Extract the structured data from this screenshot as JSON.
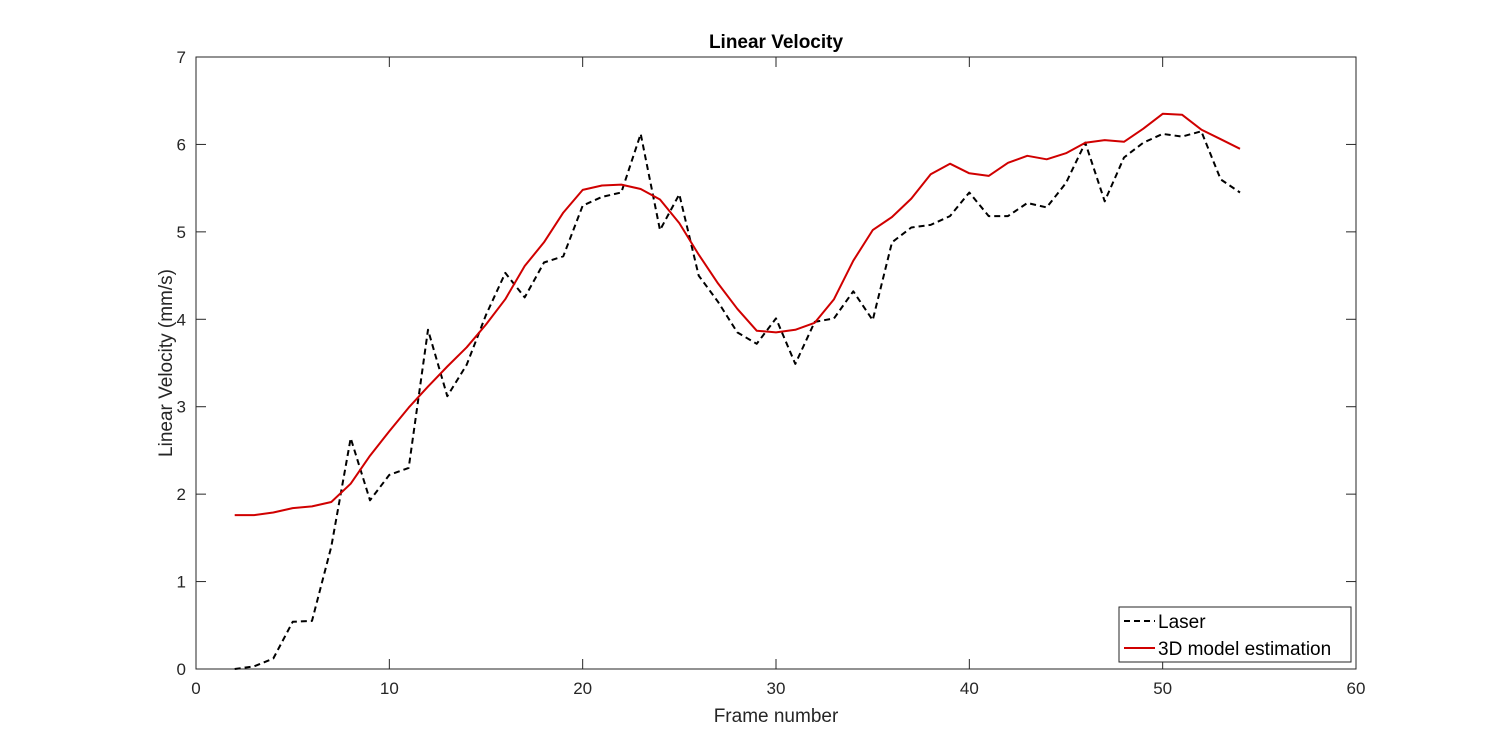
{
  "chart_data": {
    "type": "line",
    "title": "Linear Velocity",
    "xlabel": "Frame number",
    "ylabel": "Linear Velocity (mm/s)",
    "xlim": [
      0,
      60
    ],
    "ylim": [
      0,
      7
    ],
    "xticks": [
      0,
      10,
      20,
      30,
      40,
      50,
      60
    ],
    "yticks": [
      0,
      1,
      2,
      3,
      4,
      5,
      6,
      7
    ],
    "grid": false,
    "legend_position": "bottom-right",
    "series": [
      {
        "name": "Laser",
        "color": "#000000",
        "style": "dashed",
        "x": [
          2,
          3,
          4,
          5,
          6,
          7,
          8,
          9,
          10,
          11,
          12,
          13,
          14,
          15,
          16,
          17,
          18,
          19,
          20,
          21,
          22,
          23,
          24,
          25,
          26,
          27,
          28,
          29,
          30,
          31,
          32,
          33,
          34,
          35,
          36,
          37,
          38,
          39,
          40,
          41,
          42,
          43,
          44,
          45,
          46,
          47,
          48,
          49,
          50,
          51,
          52,
          53,
          54
        ],
        "y": [
          0.0,
          0.03,
          0.12,
          0.54,
          0.55,
          1.4,
          2.64,
          1.93,
          2.22,
          2.3,
          3.88,
          3.12,
          3.48,
          4.05,
          4.53,
          4.25,
          4.65,
          4.72,
          5.3,
          5.4,
          5.45,
          6.12,
          5.02,
          5.43,
          4.5,
          4.2,
          3.85,
          3.72,
          4.01,
          3.49,
          3.97,
          4.01,
          4.32,
          3.99,
          4.88,
          5.05,
          5.08,
          5.18,
          5.45,
          5.18,
          5.18,
          5.33,
          5.28,
          5.56,
          6.02,
          5.35,
          5.85,
          6.02,
          6.12,
          6.09,
          6.15,
          5.6,
          5.45
        ]
      },
      {
        "name": "3D model estimation",
        "color": "#d00000",
        "style": "solid",
        "x": [
          2,
          3,
          4,
          5,
          6,
          7,
          8,
          9,
          10,
          11,
          12,
          13,
          14,
          15,
          16,
          17,
          18,
          19,
          20,
          21,
          22,
          23,
          24,
          25,
          26,
          27,
          28,
          29,
          30,
          31,
          32,
          33,
          34,
          35,
          36,
          37,
          38,
          39,
          40,
          41,
          42,
          43,
          44,
          45,
          46,
          47,
          48,
          49,
          50,
          51,
          52,
          53,
          54
        ],
        "y": [
          1.76,
          1.76,
          1.79,
          1.84,
          1.86,
          1.91,
          2.12,
          2.44,
          2.72,
          2.99,
          3.23,
          3.46,
          3.68,
          3.94,
          4.23,
          4.61,
          4.88,
          5.22,
          5.48,
          5.53,
          5.54,
          5.49,
          5.37,
          5.1,
          4.74,
          4.41,
          4.12,
          3.87,
          3.85,
          3.88,
          3.96,
          4.23,
          4.67,
          5.02,
          5.17,
          5.38,
          5.66,
          5.78,
          5.67,
          5.64,
          5.79,
          5.87,
          5.83,
          5.9,
          6.02,
          6.05,
          6.03,
          6.18,
          6.35,
          6.34,
          6.17,
          6.06,
          5.95
        ]
      }
    ]
  }
}
